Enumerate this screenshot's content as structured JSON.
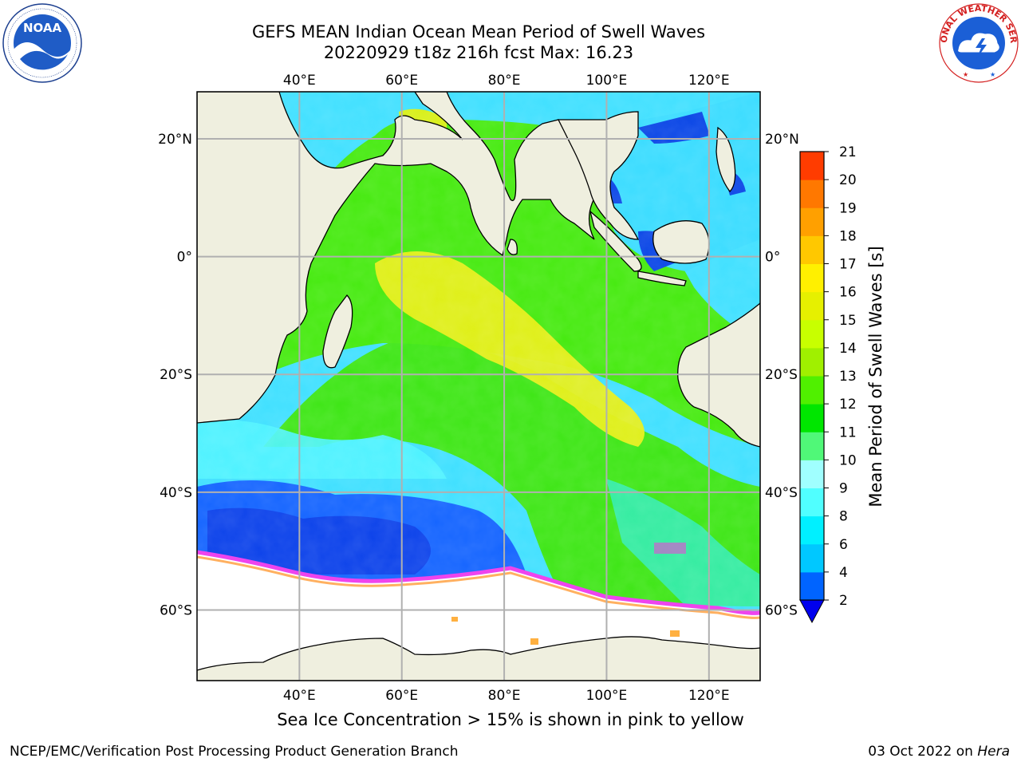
{
  "title": {
    "line1": "GEFS MEAN Indian Ocean Mean Period of Swell Waves",
    "line2": "20220929 t18z 216h fcst   Max: 16.23"
  },
  "map": {
    "lon_range": [
      20,
      130
    ],
    "lat_range": [
      -72,
      28
    ],
    "lon_ticks": [
      40,
      60,
      80,
      100,
      120
    ],
    "lat_ticks": [
      20,
      0,
      -20,
      -40,
      -60
    ],
    "lon_tick_labels": [
      "40°E",
      "60°E",
      "80°E",
      "100°E",
      "120°E"
    ],
    "lat_tick_labels": [
      "20°N",
      "0°",
      "20°S",
      "40°S",
      "60°S"
    ],
    "grid": true,
    "land_color": "#efefdf",
    "ocean_palette": {
      "low": "#0a46e6",
      "mid": "#2ff0ff",
      "high": "#3ee60a",
      "peak": "#e8ef18",
      "ice": "#ee44ee"
    }
  },
  "colorbar": {
    "label": "Mean Period of Swell Waves [s]",
    "levels": [
      2,
      4,
      6,
      8,
      9,
      10,
      11,
      12,
      13,
      14,
      15,
      16,
      17,
      18,
      19,
      20,
      21
    ],
    "colors": [
      "#0064ff",
      "#00c8ff",
      "#00f0ff",
      "#50ffff",
      "#a0ffff",
      "#50f878",
      "#00e600",
      "#50f000",
      "#a0f000",
      "#c8ff00",
      "#e6f000",
      "#fff000",
      "#ffc800",
      "#ffa000",
      "#ff7800",
      "#ff3c00",
      "#ff0000"
    ],
    "under_color": "#0000ee"
  },
  "caption": "Sea Ice Concentration > 15% is shown in pink to yellow",
  "footer": {
    "left": "NCEP/EMC/Verification Post Processing Product Generation Branch",
    "date": "03 Oct 2022 on ",
    "host": "Hera"
  },
  "logos": {
    "noaa": "NOAA",
    "nws": "NATIONAL WEATHER SERVICE"
  }
}
